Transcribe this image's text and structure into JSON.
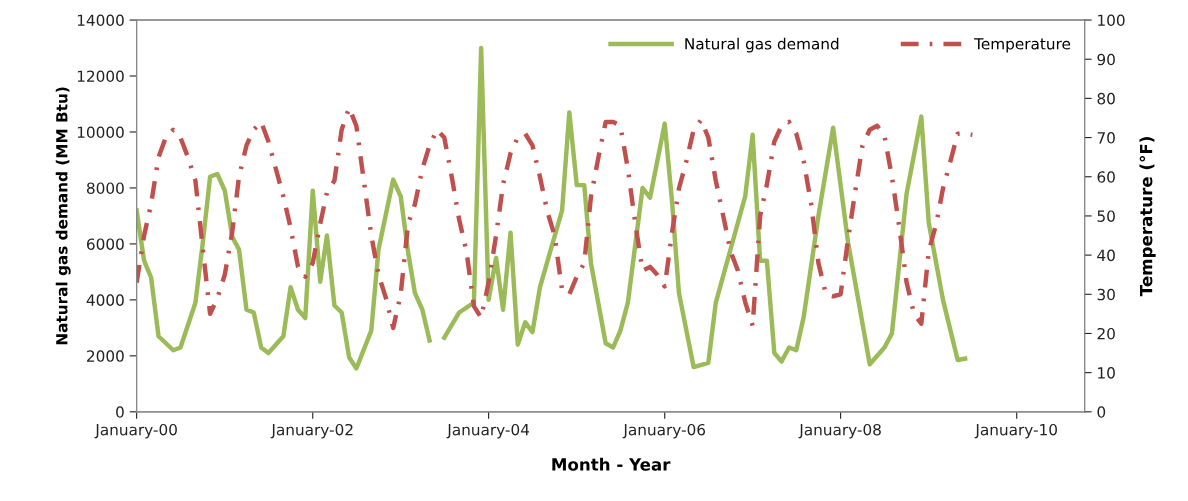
{
  "chart_data": {
    "type": "line",
    "xlabel": "Month - Year",
    "ylabel": "Natural gas demand (MM Btu)",
    "y2label": "Temperature (°F)",
    "xlim": [
      "2000-01",
      "2010-10-10"
    ],
    "xticks": [
      {
        "value": "2000-01",
        "label": "January-00"
      },
      {
        "value": "2002-01",
        "label": "January-02"
      },
      {
        "value": "2004-01",
        "label": "January-04"
      },
      {
        "value": "2006-01",
        "label": "January-06"
      },
      {
        "value": "2008-01",
        "label": "January-08"
      },
      {
        "value": "2010-01",
        "label": "January-10"
      }
    ],
    "ylim": [
      0,
      14000
    ],
    "yticks": [
      0,
      2000,
      4000,
      6000,
      8000,
      10000,
      12000,
      14000
    ],
    "y2lim": [
      0,
      100
    ],
    "y2ticks": [
      0,
      10,
      20,
      30,
      40,
      50,
      60,
      70,
      80,
      90,
      100
    ],
    "grid": false,
    "legend": "top right",
    "marker": "none",
    "series": [
      {
        "name": "Natural gas demand",
        "color": "#9bbb59",
        "line_style": "solid",
        "x": [
          "2000-01",
          "2000-02",
          "2000-03",
          "2000-04",
          "2000-06",
          "2000-07",
          "2000-09",
          "2000-10",
          "2000-11",
          "2000-12",
          "2001-01",
          "2001-02",
          "2001-03",
          "2001-04",
          "2001-05",
          "2001-06",
          "2001-07",
          "2001-09",
          "2001-10",
          "2001-11",
          "2001-12",
          "2002-01",
          "2002-02",
          "2002-03",
          "2002-04",
          "2002-05",
          "2002-06",
          "2002-07",
          "2002-09",
          "2002-10",
          "2002-12",
          "2003-01",
          "2003-02",
          "2003-03",
          "2003-04",
          "2003-05",
          "2003-06",
          "2003-07",
          "2003-09",
          "2003-11",
          "2003-12",
          "2004-01",
          "2004-02",
          "2004-03",
          "2004-04",
          "2004-05",
          "2004-06",
          "2004-07",
          "2004-08",
          "2004-11",
          "2004-12",
          "2005-01",
          "2005-02",
          "2005-03",
          "2005-05",
          "2005-06",
          "2005-07",
          "2005-08",
          "2005-10",
          "2005-11",
          "2006-01",
          "2006-02",
          "2006-03",
          "2006-05",
          "2006-07",
          "2006-08",
          "2006-10",
          "2006-12",
          "2007-01",
          "2007-02",
          "2007-03",
          "2007-04",
          "2007-05",
          "2007-06",
          "2007-07",
          "2007-08",
          "2007-10",
          "2007-12",
          "2008-02",
          "2008-05",
          "2008-07",
          "2008-08",
          "2008-10",
          "2008-12",
          "2009-01",
          "2009-03",
          "2009-05",
          "2009-06"
        ],
        "values": [
          7200,
          5400,
          4800,
          2700,
          2200,
          2300,
          3900,
          6000,
          8400,
          8500,
          7900,
          6250,
          5800,
          3650,
          3550,
          2300,
          2100,
          2700,
          4450,
          3650,
          3350,
          7900,
          4650,
          6300,
          3800,
          3550,
          1950,
          1550,
          2900,
          5800,
          8300,
          7700,
          5700,
          4250,
          3650,
          2550,
          null,
          2650,
          3550,
          3900,
          13000,
          4000,
          5500,
          3650,
          6400,
          2400,
          3200,
          2850,
          4450,
          7200,
          10700,
          8100,
          8100,
          5300,
          2450,
          2300,
          2900,
          3900,
          8000,
          7650,
          10300,
          7450,
          4250,
          1600,
          1750,
          3900,
          5800,
          7700,
          9900,
          5400,
          5400,
          2100,
          1800,
          2300,
          2200,
          3400,
          7000,
          10150,
          6050,
          1700,
          2300,
          2800,
          7800,
          10550,
          6750,
          4000,
          1850,
          1900
        ]
      },
      {
        "name": "Temperature",
        "color": "#c0504d",
        "line_style": "dashdot",
        "axis": "y2",
        "x": [
          "2000-01",
          "2000-02",
          "2000-03",
          "2000-04",
          "2000-05",
          "2000-06",
          "2000-07",
          "2000-08",
          "2000-09",
          "2000-10",
          "2000-11",
          "2000-12",
          "2001-01",
          "2001-02",
          "2001-03",
          "2001-04",
          "2001-05",
          "2001-06",
          "2001-07",
          "2001-08",
          "2001-09",
          "2001-10",
          "2001-11",
          "2001-12",
          "2002-01",
          "2002-02",
          "2002-03",
          "2002-04",
          "2002-05",
          "2002-06",
          "2002-07",
          "2002-08",
          "2002-09",
          "2002-10",
          "2002-11",
          "2002-12",
          "2003-01",
          "2003-02",
          "2003-03",
          "2003-04",
          "2003-05",
          "2003-06",
          "2003-07",
          "2003-08",
          "2003-09",
          "2003-10",
          "2003-11",
          "2003-12",
          "2004-01",
          "2004-02",
          "2004-03",
          "2004-04",
          "2004-05",
          "2004-06",
          "2004-07",
          "2004-08",
          "2004-09",
          "2004-10",
          "2004-11",
          "2004-12",
          "2005-01",
          "2005-02",
          "2005-03",
          "2005-04",
          "2005-05",
          "2005-06",
          "2005-07",
          "2005-08",
          "2005-09",
          "2005-10",
          "2005-11",
          "2005-12",
          "2006-01",
          "2006-02",
          "2006-03",
          "2006-04",
          "2006-05",
          "2006-06",
          "2006-07",
          "2006-08",
          "2006-09",
          "2006-10",
          "2006-11",
          "2006-12",
          "2007-01",
          "2007-02",
          "2007-03",
          "2007-04",
          "2007-05",
          "2007-06",
          "2007-07",
          "2007-08",
          "2007-09",
          "2007-10",
          "2007-11",
          "2007-12",
          "2008-01",
          "2008-02",
          "2008-03",
          "2008-04",
          "2008-05",
          "2008-06",
          "2008-07",
          "2008-08",
          "2008-09",
          "2008-10",
          "2008-11",
          "2008-12",
          "2009-01",
          "2009-02",
          "2009-03",
          "2009-04",
          "2009-05",
          "2009-06",
          "2009-07"
        ],
        "values": [
          33,
          45,
          53,
          65,
          70,
          72,
          70,
          65,
          59,
          42,
          25,
          29,
          35,
          46,
          60,
          68,
          72,
          74,
          69,
          62,
          55,
          47,
          37,
          34.5,
          38,
          48,
          56,
          59,
          72,
          77.6,
          73,
          59,
          45,
          35,
          29,
          21.4,
          30,
          48,
          53,
          62,
          68,
          72,
          70,
          60,
          49,
          41,
          27,
          24,
          33,
          45,
          58,
          66,
          70,
          71,
          68,
          60,
          51,
          45,
          31,
          30,
          34.5,
          38,
          55,
          65,
          74,
          74,
          73,
          62,
          48,
          36,
          37,
          35,
          32,
          46,
          57,
          64,
          72,
          74.5,
          70,
          59,
          50,
          41,
          36,
          28,
          22,
          50,
          58,
          69,
          73,
          74,
          71,
          64,
          53,
          38,
          30,
          29.5,
          30,
          44,
          56,
          68,
          72,
          73,
          70.5,
          60,
          47,
          33,
          25,
          22.5,
          41,
          48,
          57,
          64,
          71,
          71,
          70.7
        ]
      }
    ]
  }
}
